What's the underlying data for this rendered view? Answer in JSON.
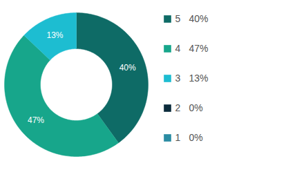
{
  "chart_data": {
    "type": "donut",
    "categories": [
      "5",
      "4",
      "3",
      "2",
      "1"
    ],
    "values": [
      40,
      47,
      13,
      0,
      0
    ],
    "value_labels": [
      "40%",
      "47%",
      "13%",
      "0%",
      "0%"
    ],
    "colors": [
      "#0e6b66",
      "#17a68b",
      "#1dbdd1",
      "#0c2b3b",
      "#2a8ca3"
    ],
    "data_labels": true,
    "legend": "right"
  }
}
